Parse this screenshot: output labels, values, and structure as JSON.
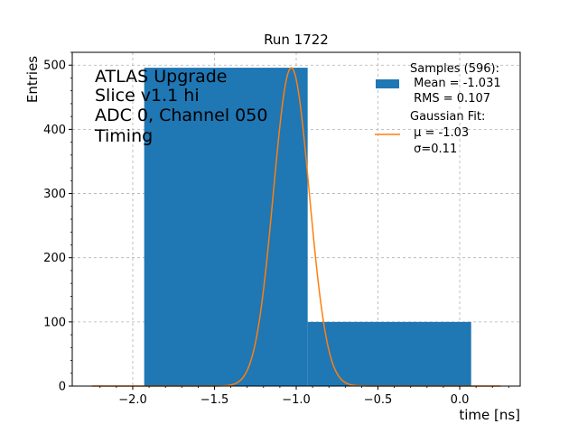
{
  "chart_data": {
    "type": "bar",
    "title": "Run 1722",
    "xlabel": "time [ns]",
    "ylabel": "Entries",
    "xlim": [
      -2.37,
      0.37
    ],
    "ylim": [
      0,
      520
    ],
    "xticks": [
      -2.0,
      -1.5,
      -1.0,
      -0.5,
      0.0
    ],
    "xtick_labels": [
      "−2.0",
      "−1.5",
      "−1.0",
      "−0.5",
      "0.0"
    ],
    "yticks": [
      0,
      100,
      200,
      300,
      400,
      500
    ],
    "ytick_labels": [
      "0",
      "100",
      "200",
      "300",
      "400",
      "500"
    ],
    "grid": true,
    "histogram": {
      "name": "Samples (596):",
      "color": "#1f77b4",
      "bins": [
        {
          "x0": -1.93,
          "x1": -0.93,
          "count": 496
        },
        {
          "x0": -0.93,
          "x1": 0.07,
          "count": 100
        }
      ]
    },
    "fit": {
      "name": "Gaussian Fit:",
      "color": "#ff7f0e",
      "amplitude": 496,
      "mu": -1.03,
      "sigma": 0.11,
      "x_range": [
        -2.25,
        0.25
      ]
    },
    "annotation": [
      "ATLAS Upgrade",
      "Slice v1.1 hi",
      "ADC 0, Channel 050",
      "Timing"
    ],
    "legend": {
      "placement": "top-right",
      "entries": [
        {
          "kind": "patch",
          "lines": [
            "Samples (596):",
            " Mean = -1.031",
            " RMS = 0.107"
          ]
        },
        {
          "kind": "line",
          "lines": [
            "Gaussian Fit:",
            " μ = -1.03",
            " σ=0.11"
          ]
        }
      ]
    }
  }
}
